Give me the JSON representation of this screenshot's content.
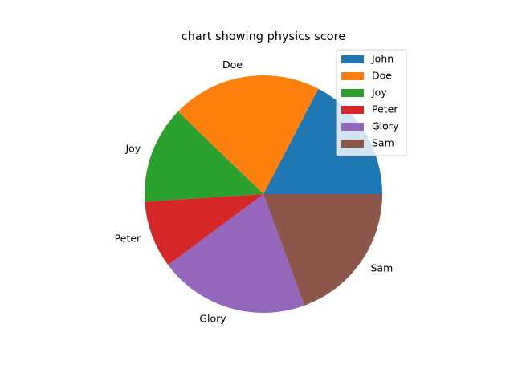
{
  "chart_data": {
    "type": "pie",
    "title": "chart showing physics score",
    "categories": [
      "John",
      "Doe",
      "Joy",
      "Peter",
      "Glory",
      "Sam"
    ],
    "values": [
      17,
      20,
      13,
      9,
      20,
      19
    ],
    "colors": [
      "#1f77b4",
      "#ff7f0e",
      "#2ca02c",
      "#d62728",
      "#9467bd",
      "#8c564b"
    ],
    "start_angle_deg": 0,
    "direction": "counterclockwise",
    "legend": {
      "placement": "top-right",
      "entries": [
        "John",
        "Doe",
        "Joy",
        "Peter",
        "Glory",
        "Sam"
      ]
    }
  }
}
